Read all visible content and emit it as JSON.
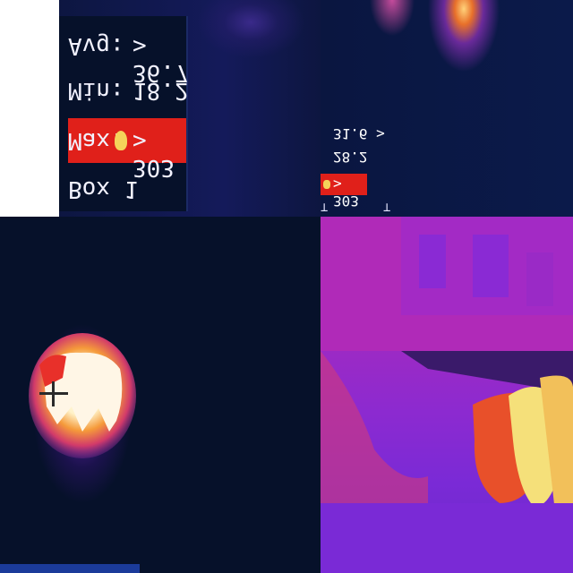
{
  "readout_large": {
    "avg_label": "Avg:",
    "avg_value": "36.7 >",
    "min_label": "Min:",
    "min_value": "18.2",
    "max_label": "Max:",
    "max_value": "303 >",
    "box_label": "Box 1"
  },
  "readout_small": {
    "avg_value": "31.6 >",
    "min_value": "28.2",
    "max_value": "303 >"
  },
  "colors": {
    "max_highlight": "#e0201a",
    "background": "#06112a",
    "hot": "#fff2c8",
    "warm": "#e8602a",
    "cool": "#7a2ad6"
  }
}
